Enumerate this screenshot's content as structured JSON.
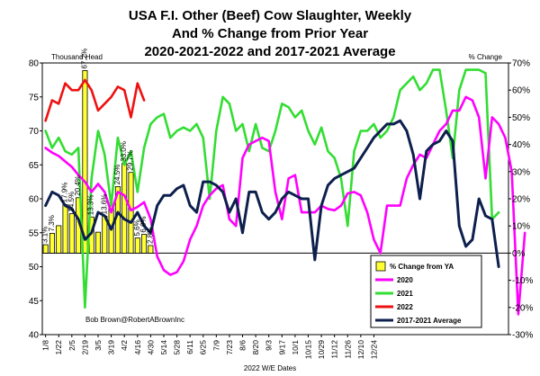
{
  "chart_data": {
    "type": "line",
    "title_lines": [
      "USA F.I. Other (Beef) Cow Slaughter, Weekly",
      "And % Change from Prior Year",
      "2020-2021-2022 and 2017-2021 Average"
    ],
    "left_axis_unit": "Thousand Head",
    "right_axis_unit": "% Change",
    "xlabel": "2022 W/E Dates",
    "credit": "Bob Brown@RobertABrownInc",
    "left_ylim": [
      40,
      80
    ],
    "left_ticks": [
      40,
      45,
      50,
      55,
      60,
      65,
      70,
      75,
      80
    ],
    "right_ylim": [
      -30,
      70
    ],
    "right_ticks": [
      "-30%",
      "-20%",
      "-10%",
      "0%",
      "10%",
      "20%",
      "30%",
      "40%",
      "50%",
      "60%",
      "70%"
    ],
    "right_tick_values": [
      -30,
      -20,
      -10,
      0,
      10,
      20,
      30,
      40,
      50,
      60,
      70
    ],
    "x_tick_labels": [
      "1/8",
      "1/22",
      "2/5",
      "2/19",
      "3/5",
      "3/19",
      "4/2",
      "4/16",
      "4/30",
      "5/14",
      "5/28",
      "6/11",
      "6/25",
      "7/9",
      "7/23",
      "8/6",
      "8/20",
      "9/3",
      "9/17",
      "10/1",
      "10/15",
      "10/29",
      "11/12",
      "11/26",
      "12/10",
      "12/24"
    ],
    "legend": [
      {
        "name": "% Change from YA",
        "kind": "bar",
        "color": "#ffff33"
      },
      {
        "name": "2020",
        "kind": "line",
        "color": "#ff00ff"
      },
      {
        "name": "2021",
        "kind": "line",
        "color": "#33dd33"
      },
      {
        "name": "2022",
        "kind": "line",
        "color": "#ee1111"
      },
      {
        "name": "2017-2021 Average",
        "kind": "line",
        "color": "#0d1f4d"
      }
    ],
    "bar_series": {
      "name": "% Change from YA",
      "axis": "right",
      "values": [
        3.1,
        7.3,
        10.1,
        17.9,
        14.5,
        20.4,
        67.2,
        13.3,
        7.7,
        13.6,
        17.5,
        24.5,
        33.0,
        29.7,
        5.6,
        6.9,
        2.8
      ],
      "labels": [
        "3.1%",
        "7.3%",
        "",
        "17.9%",
        "14.5%",
        "20.4%",
        "67.2%",
        "13.3%",
        "",
        "13.6%",
        "",
        "24.5%",
        "33.0%",
        "29.7%",
        "5.6%",
        "6.9%",
        "2.8%"
      ]
    },
    "series": [
      {
        "name": "2022",
        "axis": "left",
        "values": [
          71.5,
          74.5,
          74.0,
          77.0,
          76.0,
          76.0,
          77.5,
          76.0,
          73.0,
          74.0,
          75.0,
          76.5,
          76.0,
          72.0,
          77.0,
          74.5
        ]
      },
      {
        "name": "2020",
        "axis": "left",
        "values": [
          67.5,
          66.8,
          66.3,
          65.5,
          64.7,
          63.5,
          62.5,
          61.0,
          62.2,
          61.0,
          58.0,
          61.0,
          60.5,
          58.3,
          58.8,
          59.5,
          57.0,
          51.5,
          49.5,
          48.8,
          49.2,
          50.8,
          54.0,
          56.0,
          59.0,
          60.5,
          61.5,
          62.0,
          57.0,
          56.0,
          66.0,
          68.0,
          68.5,
          69.0,
          68.5,
          61.0,
          57.0,
          63.0,
          63.5,
          58.0,
          58.0,
          58.0,
          59.0,
          58.5,
          58.3,
          59.0,
          60.8,
          61.0,
          60.5,
          58.0,
          54.0,
          52.0,
          59.0,
          59.0,
          59.0,
          63.0,
          65.0,
          66.5,
          66.0,
          68.0,
          70.0,
          71.0,
          73.0,
          73.0,
          75.0,
          74.5,
          72.0,
          63.0,
          72.0,
          71.0,
          69.0,
          64.0,
          43.0,
          55.0
        ]
      },
      {
        "name": "2021",
        "axis": "left",
        "values": [
          70.0,
          67.5,
          69.0,
          67.0,
          66.5,
          67.5,
          44.0,
          63.0,
          70.0,
          66.5,
          59.0,
          69.0,
          65.0,
          67.0,
          61.0,
          67.5,
          71.0,
          72.0,
          72.5,
          69.0,
          70.0,
          70.5,
          70.0,
          71.0,
          69.0,
          60.0,
          70.0,
          75.0,
          74.0,
          70.0,
          71.0,
          67.0,
          71.0,
          67.5,
          67.0,
          70.0,
          74.0,
          73.5,
          72.0,
          73.0,
          70.0,
          68.0,
          70.5,
          67.0,
          66.0,
          63.0,
          56.0,
          67.0,
          70.0,
          70.0,
          71.0,
          69.0,
          70.0,
          72.0,
          76.0,
          77.0,
          78.0,
          76.0,
          77.0,
          79.0,
          79.0,
          73.0,
          66.0,
          76.0,
          79.0,
          79.0,
          79.0,
          78.5,
          57.0,
          58.0
        ]
      },
      {
        "name": "2017-2021 Average",
        "axis": "left",
        "values": [
          59.0,
          61.0,
          60.5,
          59.0,
          58.5,
          57.0,
          54.0,
          55.0,
          58.0,
          57.5,
          55.5,
          58.0,
          57.0,
          56.5,
          58.0,
          56.0,
          55.0,
          59.0,
          60.5,
          60.5,
          61.5,
          62.0,
          59.0,
          58.0,
          62.5,
          62.5,
          62.0,
          61.0,
          58.0,
          60.0,
          55.0,
          61.0,
          61.0,
          58.0,
          57.0,
          58.0,
          60.0,
          61.0,
          60.5,
          60.0,
          60.0,
          51.0,
          59.0,
          62.0,
          63.0,
          63.5,
          64.0,
          64.5,
          66.0,
          67.5,
          69.0,
          70.0,
          71.0,
          71.0,
          71.5,
          70.0,
          66.5,
          60.0,
          67.0,
          68.0,
          68.5,
          70.0,
          68.5,
          56.0,
          53.0,
          54.0,
          60.0,
          57.5,
          57.0,
          50.0
        ]
      }
    ]
  }
}
